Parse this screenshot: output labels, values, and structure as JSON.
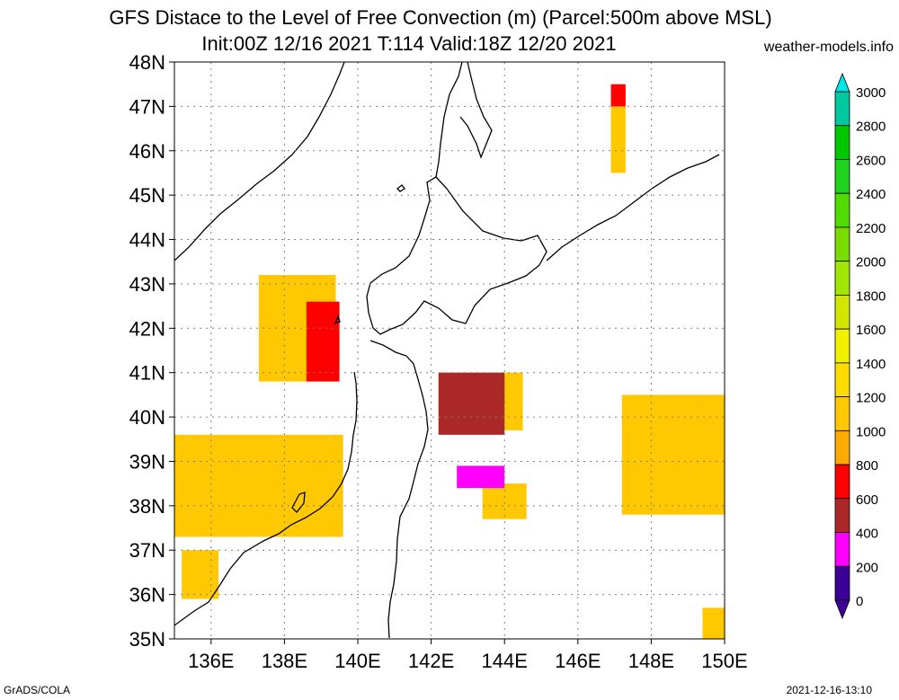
{
  "title_line1": "GFS Distace to the Level of Free Convection (m) (Parcel:500m above MSL)",
  "title_line2": "Init:00Z 12/16 2021 T:114 Valid:18Z 12/20 2021",
  "site": "weather-models.info",
  "footer_left": "GrADS/COLA",
  "footer_right": "2021-12-16-13:10",
  "chart_data": {
    "type": "heatmap",
    "x_ticks": [
      "136E",
      "138E",
      "140E",
      "142E",
      "144E",
      "146E",
      "148E",
      "150E"
    ],
    "y_ticks": [
      "48N",
      "47N",
      "46N",
      "45N",
      "44N",
      "43N",
      "42N",
      "41N",
      "40N",
      "39N",
      "38N",
      "37N",
      "36N",
      "35N"
    ],
    "lon_range": [
      135,
      150
    ],
    "lat_range": [
      35,
      48
    ],
    "grid": true,
    "colorbar": {
      "labels": [
        "3000",
        "2800",
        "2600",
        "2400",
        "2200",
        "2000",
        "1800",
        "1600",
        "1400",
        "1200",
        "1000",
        "800",
        "600",
        "400",
        "200",
        "0"
      ],
      "colors": [
        "#00e6e6",
        "#00c8a0",
        "#00c800",
        "#1ed21e",
        "#50dc00",
        "#78dc00",
        "#a0e600",
        "#d2e600",
        "#f0f000",
        "#ffdc00",
        "#ffc800",
        "#ffaa00",
        "#ff0000",
        "#aa2828",
        "#ff00ff",
        "#3c0096"
      ]
    },
    "regions": [
      {
        "name": "japan-sea-west",
        "value": 900,
        "lon": [
          135.0,
          139.6
        ],
        "lat": [
          37.3,
          39.6
        ]
      },
      {
        "name": "japan-sea-north",
        "value": 900,
        "lon": [
          137.3,
          139.4
        ],
        "lat": [
          40.8,
          43.2
        ]
      },
      {
        "name": "japan-sea-north-core",
        "value": 450,
        "lon": [
          138.6,
          139.5
        ],
        "lat": [
          40.8,
          42.6
        ]
      },
      {
        "name": "japan-sea-south",
        "value": 900,
        "lon": [
          135.2,
          136.2
        ],
        "lat": [
          35.9,
          37.0
        ]
      },
      {
        "name": "pacific-east-1",
        "value": 900,
        "lon": [
          142.2,
          144.5
        ],
        "lat": [
          39.7,
          41.0
        ]
      },
      {
        "name": "pacific-east-1-core",
        "value": 300,
        "lon": [
          142.2,
          144.0
        ],
        "lat": [
          39.6,
          41.0
        ]
      },
      {
        "name": "pacific-east-2",
        "value": 900,
        "lon": [
          143.4,
          144.6
        ],
        "lat": [
          37.7,
          38.5
        ]
      },
      {
        "name": "pacific-east-2-core",
        "value": 150,
        "lon": [
          142.7,
          144.0
        ],
        "lat": [
          38.4,
          38.9
        ]
      },
      {
        "name": "kuril-north",
        "value": 900,
        "lon": [
          146.9,
          147.3
        ],
        "lat": [
          45.5,
          47.4
        ]
      },
      {
        "name": "kuril-north-core",
        "value": 500,
        "lon": [
          146.9,
          147.3
        ],
        "lat": [
          47.0,
          47.5
        ]
      },
      {
        "name": "far-east",
        "value": 950,
        "lon": [
          147.2,
          150.0
        ],
        "lat": [
          37.8,
          40.5
        ]
      },
      {
        "name": "far-south-east",
        "value": 800,
        "lon": [
          149.4,
          150.0
        ],
        "lat": [
          35.0,
          35.7
        ]
      }
    ]
  }
}
